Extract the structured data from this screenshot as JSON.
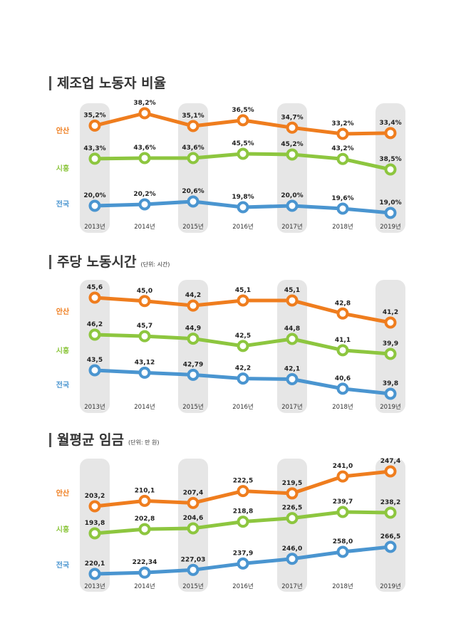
{
  "colors": {
    "ansan": "#ef7d1e",
    "siheung": "#8dc63f",
    "national": "#4a95d0",
    "band": "#e6e6e6",
    "bar": "#555555"
  },
  "chart_data": [
    {
      "type": "line",
      "title": "제조업 노동자 비율",
      "unit": "",
      "categories": [
        "2013년",
        "2014년",
        "2015년",
        "2016년",
        "2017년",
        "2018년",
        "2019년"
      ],
      "series": [
        {
          "name": "안산",
          "values": [
            35.2,
            38.2,
            35.1,
            36.5,
            34.7,
            33.2,
            33.4
          ],
          "labels": [
            "35,2%",
            "38,2%",
            "35,1%",
            "36,5%",
            "34,7%",
            "33,2%",
            "33,4%"
          ]
        },
        {
          "name": "시흥",
          "values": [
            43.3,
            43.6,
            43.6,
            45.5,
            45.2,
            43.2,
            38.5
          ],
          "labels": [
            "43,3%",
            "43,6%",
            "43,6%",
            "45,5%",
            "45,2%",
            "43,2%",
            "38,5%"
          ]
        },
        {
          "name": "전국",
          "values": [
            20.0,
            20.2,
            20.6,
            19.8,
            20.0,
            19.6,
            19.0
          ],
          "labels": [
            "20,0%",
            "20,2%",
            "20,6%",
            "19,8%",
            "20,0%",
            "19,6%",
            "19,0%"
          ]
        }
      ]
    },
    {
      "type": "line",
      "title": "주당 노동시간",
      "unit": "(단위: 시간)",
      "categories": [
        "2013년",
        "2014년",
        "2015년",
        "2016년",
        "2017년",
        "2018년",
        "2019년"
      ],
      "series": [
        {
          "name": "안산",
          "values": [
            45.6,
            45.0,
            44.2,
            45.1,
            45.1,
            42.8,
            41.2
          ],
          "labels": [
            "45,6",
            "45,0",
            "44,2",
            "45,1",
            "45,1",
            "42,8",
            "41,2"
          ]
        },
        {
          "name": "시흥",
          "values": [
            46.2,
            45.7,
            44.9,
            42.5,
            44.8,
            41.1,
            39.9
          ],
          "labels": [
            "46,2",
            "45,7",
            "44,9",
            "42,5",
            "44,8",
            "41,1",
            "39,9"
          ]
        },
        {
          "name": "전국",
          "values": [
            43.5,
            43.12,
            42.79,
            42.2,
            42.1,
            40.6,
            39.8
          ],
          "labels": [
            "43,5",
            "43,12",
            "42,79",
            "42,2",
            "42,1",
            "40,6",
            "39,8"
          ]
        }
      ]
    },
    {
      "type": "line",
      "title": "월평균 임금",
      "unit": "(단위: 만 원)",
      "categories": [
        "2013년",
        "2014년",
        "2015년",
        "2016년",
        "2017년",
        "2018년",
        "2019년"
      ],
      "series": [
        {
          "name": "안산",
          "values": [
            203.2,
            210.1,
            207.4,
            222.5,
            219.5,
            241.0,
            247.4
          ],
          "labels": [
            "203,2",
            "210,1",
            "207,4",
            "222,5",
            "219,5",
            "241,0",
            "247,4"
          ]
        },
        {
          "name": "시흥",
          "values": [
            193.8,
            202.8,
            204.6,
            218.8,
            226.5,
            239.7,
            238.2
          ],
          "labels": [
            "193,8",
            "202,8",
            "204,6",
            "218,8",
            "226,5",
            "239,7",
            "238,2"
          ]
        },
        {
          "name": "전국",
          "values": [
            220.1,
            222.34,
            227.03,
            237.9,
            246.0,
            258.0,
            266.5
          ],
          "labels": [
            "220,1",
            "222,34",
            "227,03",
            "237,9",
            "246,0",
            "258,0",
            "266,5"
          ]
        }
      ]
    }
  ]
}
